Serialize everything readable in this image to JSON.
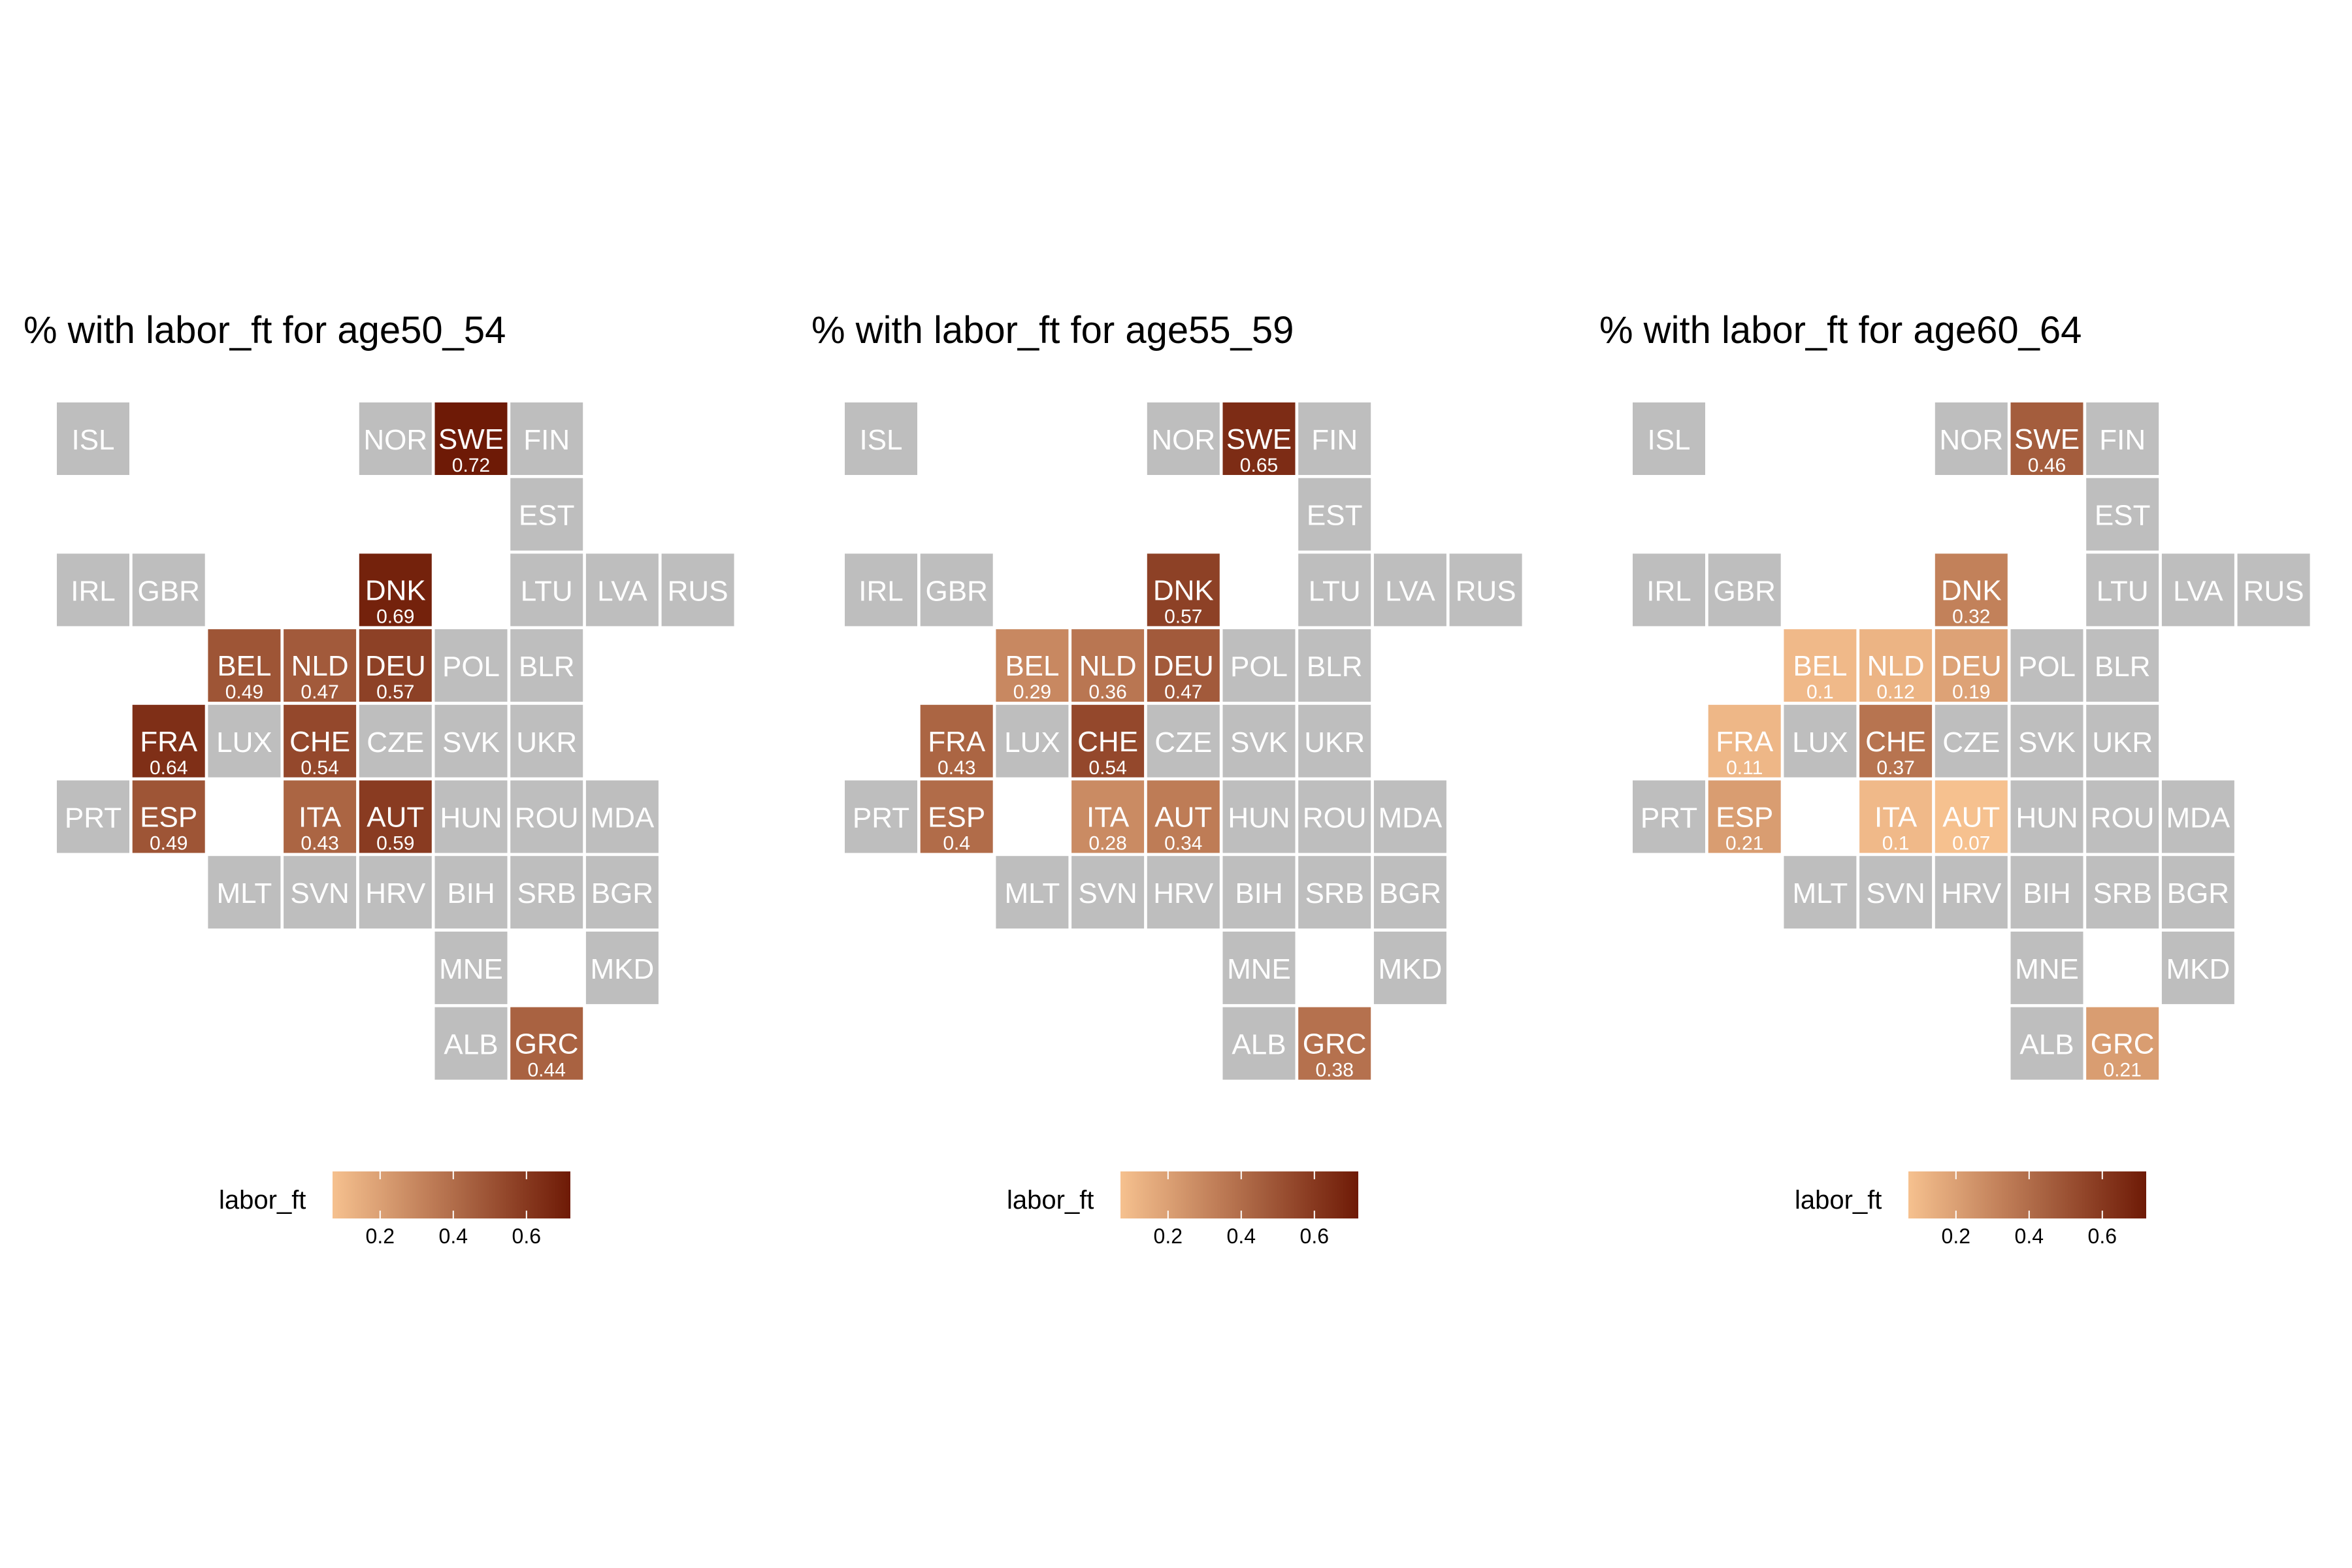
{
  "chart_data": {
    "type": "heatmap",
    "subtype": "tile-grid-map",
    "missing_color": "#bebebe",
    "color_scale": {
      "low": "#f6c18f",
      "high": "#6e1a06",
      "limits": [
        0.07,
        0.72
      ]
    },
    "layout": [
      {
        "code": "ISL",
        "col": 0,
        "row": 0
      },
      {
        "code": "NOR",
        "col": 4,
        "row": 0
      },
      {
        "code": "SWE",
        "col": 5,
        "row": 0
      },
      {
        "code": "FIN",
        "col": 6,
        "row": 0
      },
      {
        "code": "EST",
        "col": 6,
        "row": 1
      },
      {
        "code": "IRL",
        "col": 0,
        "row": 2
      },
      {
        "code": "GBR",
        "col": 1,
        "row": 2
      },
      {
        "code": "DNK",
        "col": 4,
        "row": 2
      },
      {
        "code": "LTU",
        "col": 6,
        "row": 2
      },
      {
        "code": "LVA",
        "col": 7,
        "row": 2
      },
      {
        "code": "RUS",
        "col": 8,
        "row": 2
      },
      {
        "code": "BEL",
        "col": 2,
        "row": 3
      },
      {
        "code": "NLD",
        "col": 3,
        "row": 3
      },
      {
        "code": "DEU",
        "col": 4,
        "row": 3
      },
      {
        "code": "POL",
        "col": 5,
        "row": 3
      },
      {
        "code": "BLR",
        "col": 6,
        "row": 3
      },
      {
        "code": "FRA",
        "col": 1,
        "row": 4
      },
      {
        "code": "LUX",
        "col": 2,
        "row": 4
      },
      {
        "code": "CHE",
        "col": 3,
        "row": 4
      },
      {
        "code": "CZE",
        "col": 4,
        "row": 4
      },
      {
        "code": "SVK",
        "col": 5,
        "row": 4
      },
      {
        "code": "UKR",
        "col": 6,
        "row": 4
      },
      {
        "code": "PRT",
        "col": 0,
        "row": 5
      },
      {
        "code": "ESP",
        "col": 1,
        "row": 5
      },
      {
        "code": "ITA",
        "col": 3,
        "row": 5
      },
      {
        "code": "AUT",
        "col": 4,
        "row": 5
      },
      {
        "code": "HUN",
        "col": 5,
        "row": 5
      },
      {
        "code": "ROU",
        "col": 6,
        "row": 5
      },
      {
        "code": "MDA",
        "col": 7,
        "row": 5
      },
      {
        "code": "MLT",
        "col": 2,
        "row": 6
      },
      {
        "code": "SVN",
        "col": 3,
        "row": 6
      },
      {
        "code": "HRV",
        "col": 4,
        "row": 6
      },
      {
        "code": "BIH",
        "col": 5,
        "row": 6
      },
      {
        "code": "SRB",
        "col": 6,
        "row": 6
      },
      {
        "code": "BGR",
        "col": 7,
        "row": 6
      },
      {
        "code": "MNE",
        "col": 5,
        "row": 7
      },
      {
        "code": "MKD",
        "col": 7,
        "row": 7
      },
      {
        "code": "ALB",
        "col": 5,
        "row": 8
      },
      {
        "code": "GRC",
        "col": 6,
        "row": 8
      }
    ],
    "panels": [
      {
        "title": "% with labor_ft for age50_54",
        "values": {
          "SWE": 0.72,
          "DNK": 0.69,
          "BEL": 0.49,
          "NLD": 0.47,
          "DEU": 0.57,
          "FRA": 0.64,
          "CHE": 0.54,
          "ESP": 0.49,
          "ITA": 0.43,
          "AUT": 0.59,
          "GRC": 0.44
        },
        "labels": {
          "SWE": "0.72",
          "DNK": "0.69",
          "BEL": "0.49",
          "NLD": "0.47",
          "DEU": "0.57",
          "FRA": "0.64",
          "CHE": "0.54",
          "ESP": "0.49",
          "ITA": "0.43",
          "AUT": "0.59",
          "GRC": "0.44"
        }
      },
      {
        "title": "% with labor_ft for age55_59",
        "values": {
          "SWE": 0.65,
          "DNK": 0.57,
          "BEL": 0.29,
          "NLD": 0.36,
          "DEU": 0.47,
          "FRA": 0.43,
          "CHE": 0.54,
          "ESP": 0.4,
          "ITA": 0.28,
          "AUT": 0.34,
          "GRC": 0.38
        },
        "labels": {
          "SWE": "0.65",
          "DNK": "0.57",
          "BEL": "0.29",
          "NLD": "0.36",
          "DEU": "0.47",
          "FRA": "0.43",
          "CHE": "0.54",
          "ESP": "0.4",
          "ITA": "0.28",
          "AUT": "0.34",
          "GRC": "0.38"
        }
      },
      {
        "title": "% with labor_ft for age60_64",
        "values": {
          "SWE": 0.46,
          "DNK": 0.32,
          "BEL": 0.1,
          "NLD": 0.12,
          "DEU": 0.19,
          "FRA": 0.11,
          "CHE": 0.37,
          "ESP": 0.21,
          "ITA": 0.1,
          "AUT": 0.07,
          "GRC": 0.21
        },
        "labels": {
          "SWE": "0.46",
          "DNK": "0.32",
          "BEL": "0.1",
          "NLD": "0.12",
          "DEU": "0.19",
          "FRA": "0.11",
          "CHE": "0.37",
          "ESP": "0.21",
          "ITA": "0.1",
          "AUT": "0.07",
          "GRC": "0.21"
        }
      }
    ],
    "legend": {
      "title": "labor_ft",
      "ticks": [
        0.2,
        0.4,
        0.6
      ],
      "tick_labels": [
        "0.2",
        "0.4",
        "0.6"
      ],
      "placement": "bottom"
    }
  }
}
